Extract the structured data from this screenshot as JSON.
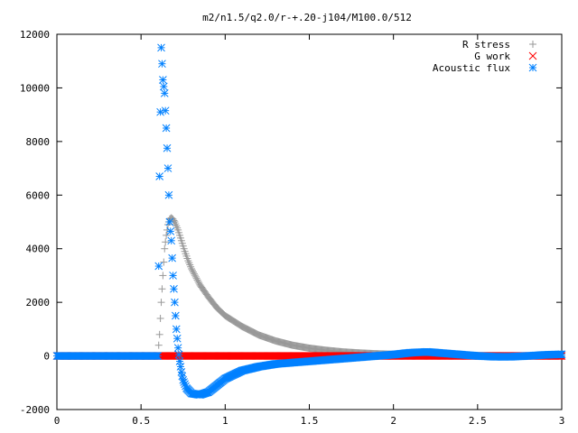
{
  "chart_data": {
    "type": "scatter",
    "title": "m2/n1.5/q2.0/r-+.20-j104/M100.0/512",
    "xlabel": "",
    "ylabel": "",
    "xlim": [
      0,
      3
    ],
    "ylim": [
      -2000,
      12000
    ],
    "x_ticks": [
      "0",
      "0.5",
      "1",
      "1.5",
      "2",
      "2.5",
      "3"
    ],
    "y_ticks": [
      "-2000",
      "0",
      "2000",
      "4000",
      "6000",
      "8000",
      "10000",
      "12000"
    ],
    "grid": false,
    "legend_position": "top-right",
    "series": [
      {
        "name": "R stress",
        "marker": "plus",
        "color": "#999999",
        "x": [
          0.0,
          0.1,
          0.2,
          0.3,
          0.4,
          0.5,
          0.6,
          0.61,
          0.62,
          0.63,
          0.64,
          0.65,
          0.66,
          0.67,
          0.68,
          0.69,
          0.7,
          0.71,
          0.72,
          0.74,
          0.76,
          0.78,
          0.8,
          0.85,
          0.9,
          0.95,
          1.0,
          1.1,
          1.2,
          1.3,
          1.4,
          1.5,
          1.6,
          1.7,
          1.8,
          1.9,
          2.0,
          2.1,
          2.2,
          2.3,
          2.4,
          2.5,
          2.6,
          2.7,
          2.8,
          2.9,
          3.0
        ],
        "y": [
          0,
          0,
          0,
          0,
          0,
          0,
          0,
          800,
          2000,
          3000,
          4000,
          4500,
          4900,
          5100,
          5150,
          5100,
          5000,
          4850,
          4700,
          4300,
          3900,
          3550,
          3250,
          2650,
          2200,
          1800,
          1500,
          1100,
          780,
          560,
          400,
          290,
          210,
          150,
          110,
          80,
          60,
          40,
          30,
          20,
          15,
          10,
          8,
          6,
          4,
          2,
          0
        ]
      },
      {
        "name": "G work",
        "marker": "cross",
        "color": "#ff0000",
        "x": [
          0.0,
          0.1,
          0.2,
          0.3,
          0.4,
          0.5,
          0.6,
          0.7,
          0.8,
          0.9,
          1.0,
          1.1,
          1.2,
          1.3,
          1.4,
          1.5,
          1.6,
          1.7,
          1.8,
          1.9,
          2.0,
          2.1,
          2.2,
          2.3,
          2.4,
          2.5,
          2.6,
          2.7,
          2.8,
          2.9,
          3.0
        ],
        "y": [
          0,
          0,
          0,
          0,
          0,
          0,
          0,
          0,
          0,
          0,
          0,
          0,
          0,
          0,
          0,
          0,
          0,
          0,
          0,
          0,
          0,
          0,
          0,
          0,
          0,
          0,
          0,
          0,
          0,
          0,
          0
        ]
      },
      {
        "name": "Acoustic flux",
        "marker": "star",
        "color": "#0080ff",
        "x": [
          0.0,
          0.1,
          0.2,
          0.3,
          0.4,
          0.5,
          0.6,
          0.61,
          0.62,
          0.63,
          0.64,
          0.65,
          0.66,
          0.67,
          0.68,
          0.69,
          0.7,
          0.71,
          0.72,
          0.73,
          0.74,
          0.75,
          0.77,
          0.8,
          0.85,
          0.9,
          0.95,
          1.0,
          1.1,
          1.2,
          1.3,
          1.4,
          1.5,
          1.6,
          1.7,
          1.8,
          1.9,
          2.0,
          2.1,
          2.2,
          2.3,
          2.4,
          2.5,
          2.6,
          2.7,
          2.8,
          2.9,
          3.0
        ],
        "y": [
          0,
          0,
          0,
          0,
          0,
          0,
          0,
          6700,
          11500,
          10300,
          9800,
          8500,
          7000,
          5000,
          4300,
          3000,
          2000,
          1000,
          300,
          -200,
          -600,
          -900,
          -1200,
          -1400,
          -1450,
          -1350,
          -1100,
          -850,
          -550,
          -400,
          -300,
          -250,
          -200,
          -150,
          -100,
          -50,
          0,
          50,
          120,
          150,
          100,
          50,
          0,
          -30,
          -30,
          0,
          40,
          60
        ]
      }
    ]
  }
}
